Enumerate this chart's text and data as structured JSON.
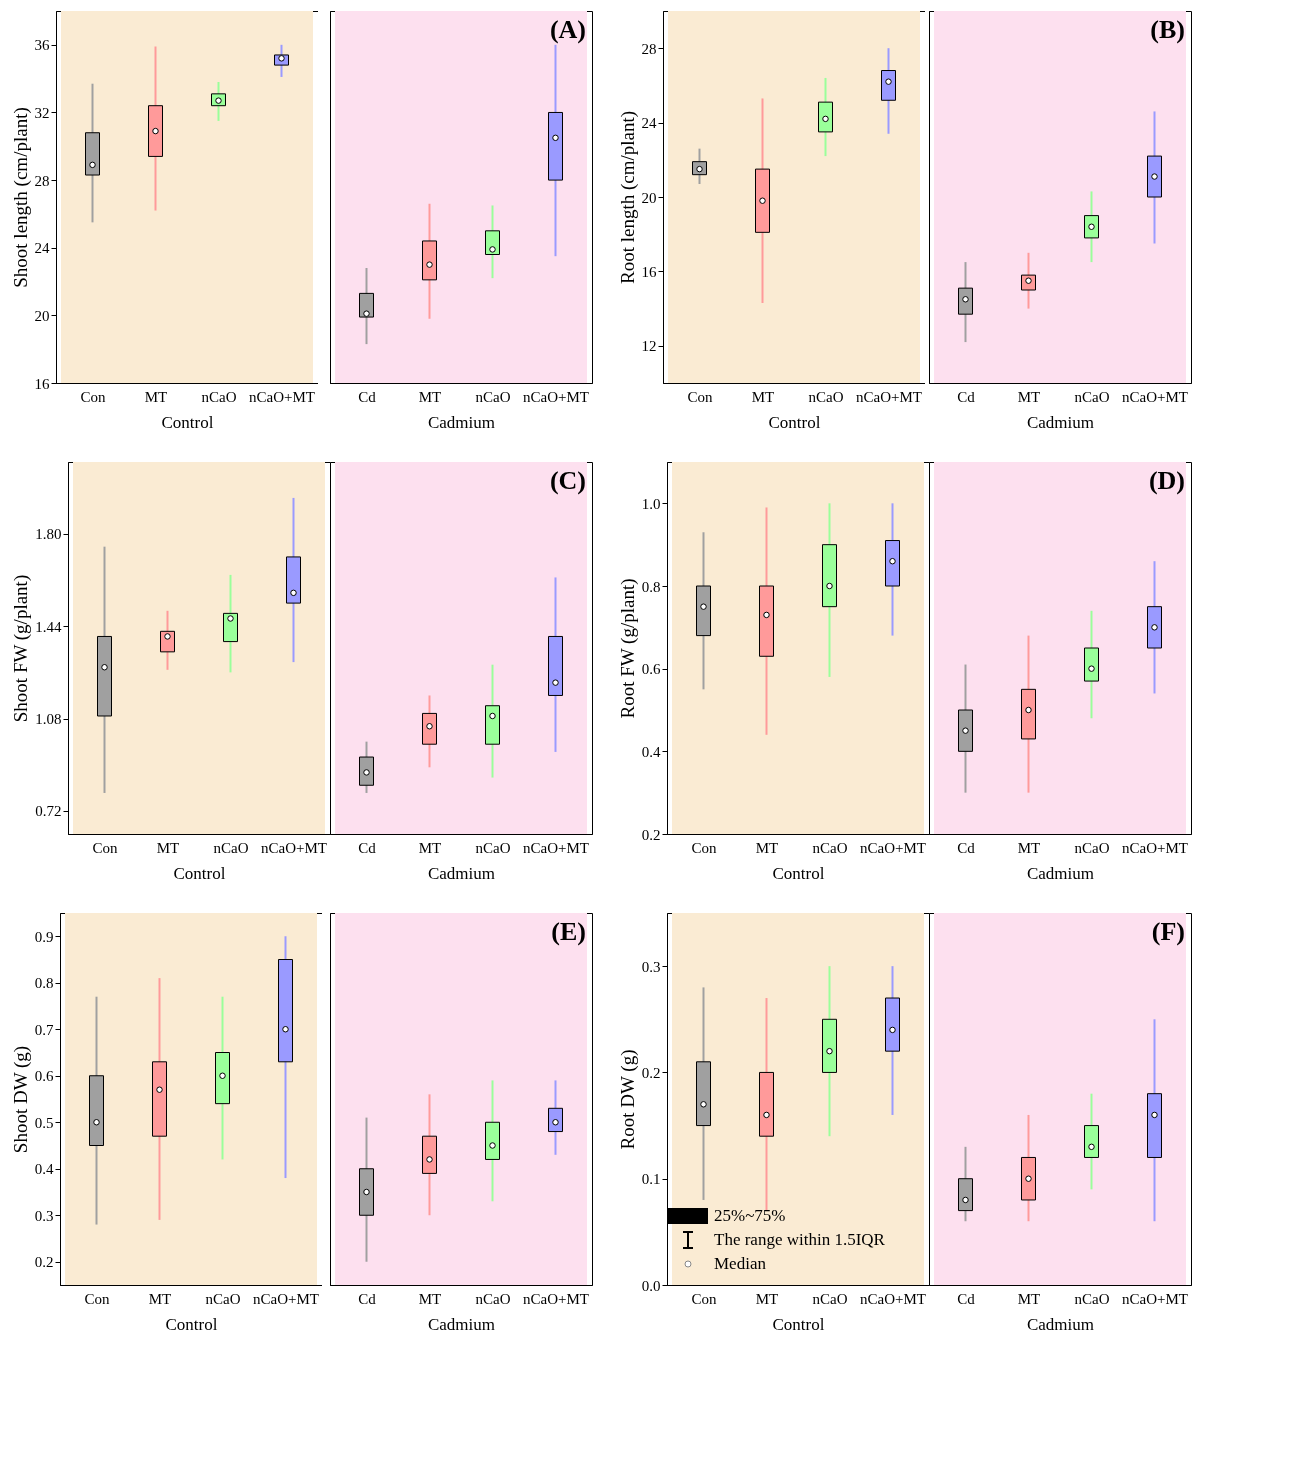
{
  "chart_data": [
    {
      "type": "box",
      "ylabel": "Shoot length (cm/plant)",
      "xlabel": "Control",
      "categories": [
        "Con",
        "MT",
        "nCaO",
        "nCaO+MT"
      ],
      "colors": [
        "#a0a0a0",
        "#ff9a9a",
        "#9aff9a",
        "#9a9aff"
      ],
      "ylim": [
        16,
        38
      ],
      "yticks": [
        16,
        20,
        24,
        28,
        32,
        36
      ],
      "bands": [
        {
          "axis": "x",
          "from": "Con",
          "to": "nCaO+MT",
          "color": "#faebd3"
        }
      ],
      "boxes": [
        {
          "low": 25.5,
          "q1": 28.3,
          "median": 28.9,
          "q3": 30.8,
          "high": 33.7
        },
        {
          "low": 26.2,
          "q1": 29.4,
          "median": 30.9,
          "q3": 32.4,
          "high": 35.9
        },
        {
          "low": 31.5,
          "q1": 32.4,
          "median": 32.7,
          "q3": 33.1,
          "high": 33.8
        },
        {
          "low": 34.1,
          "q1": 34.8,
          "median": 35.2,
          "q3": 35.4,
          "high": 36.0
        }
      ]
    },
    {
      "type": "box",
      "title": "(A)",
      "xlabel": "Cadmium",
      "tick_labels": "x",
      "categories": [
        "Cd",
        "MT",
        "nCaO",
        "nCaO+MT"
      ],
      "colors": [
        "#a0a0a0",
        "#ff9a9a",
        "#9aff9a",
        "#9a9aff"
      ],
      "ylim": [
        16,
        38
      ],
      "yticks": [
        16,
        20,
        24,
        28,
        32,
        36
      ],
      "bands": [
        {
          "axis": "x",
          "from": "Cd",
          "to": "nCaO+MT",
          "color": "#fde0ef"
        }
      ],
      "boxes": [
        {
          "low": 18.3,
          "q1": 19.9,
          "median": 20.1,
          "q3": 21.3,
          "high": 22.8
        },
        {
          "low": 19.8,
          "q1": 22.1,
          "median": 23.0,
          "q3": 24.4,
          "high": 26.6
        },
        {
          "low": 22.2,
          "q1": 23.6,
          "median": 23.9,
          "q3": 25.0,
          "high": 26.5
        },
        {
          "low": 23.5,
          "q1": 28.0,
          "median": 30.5,
          "q3": 32.0,
          "high": 36.0
        }
      ]
    },
    {
      "type": "box",
      "ylabel": "Root length (cm/plant)",
      "xlabel": "Control",
      "categories": [
        "Con",
        "MT",
        "nCaO",
        "nCaO+MT"
      ],
      "colors": [
        "#a0a0a0",
        "#ff9a9a",
        "#9aff9a",
        "#9a9aff"
      ],
      "ylim": [
        10,
        30
      ],
      "yticks": [
        12,
        16,
        20,
        24,
        28
      ],
      "bands": [
        {
          "axis": "x",
          "from": "Con",
          "to": "nCaO+MT",
          "color": "#faebd3"
        }
      ],
      "boxes": [
        {
          "low": 20.7,
          "q1": 21.2,
          "median": 21.5,
          "q3": 21.9,
          "high": 22.6
        },
        {
          "low": 14.3,
          "q1": 18.1,
          "median": 19.8,
          "q3": 21.5,
          "high": 25.3
        },
        {
          "low": 22.2,
          "q1": 23.5,
          "median": 24.2,
          "q3": 25.1,
          "high": 26.4
        },
        {
          "low": 23.4,
          "q1": 25.2,
          "median": 26.2,
          "q3": 26.8,
          "high": 28.0
        }
      ]
    },
    {
      "type": "box",
      "title": "(B)",
      "xlabel": "Cadmium",
      "tick_labels": "x",
      "categories": [
        "Cd",
        "MT",
        "nCaO",
        "nCaO+MT"
      ],
      "colors": [
        "#a0a0a0",
        "#ff9a9a",
        "#9aff9a",
        "#9a9aff"
      ],
      "ylim": [
        10,
        30
      ],
      "yticks": [
        12,
        16,
        20,
        24,
        28
      ],
      "bands": [
        {
          "axis": "x",
          "from": "Cd",
          "to": "nCaO+MT",
          "color": "#fde0ef"
        }
      ],
      "boxes": [
        {
          "low": 12.2,
          "q1": 13.7,
          "median": 14.5,
          "q3": 15.1,
          "high": 16.5
        },
        {
          "low": 14.0,
          "q1": 15.0,
          "median": 15.5,
          "q3": 15.8,
          "high": 17.0
        },
        {
          "low": 16.5,
          "q1": 17.8,
          "median": 18.4,
          "q3": 19.0,
          "high": 20.3
        },
        {
          "low": 17.5,
          "q1": 20.0,
          "median": 21.1,
          "q3": 22.2,
          "high": 24.6
        }
      ]
    },
    {
      "type": "box",
      "ylabel": "Shoot FW (g/plant)",
      "xlabel": "Control",
      "categories": [
        "Con",
        "MT",
        "nCaO",
        "nCaO+MT"
      ],
      "colors": [
        "#a0a0a0",
        "#ff9a9a",
        "#9aff9a",
        "#9a9aff"
      ],
      "ylim": [
        0.63,
        2.08
      ],
      "yticks": [
        0.72,
        1.08,
        1.44,
        {
          "value": 1.8,
          "label": "1.80"
        }
      ],
      "bands": [
        {
          "axis": "x",
          "from": "Con",
          "to": "nCaO+MT",
          "color": "#faebd3"
        }
      ],
      "boxes": [
        {
          "low": 0.79,
          "q1": 1.09,
          "median": 1.28,
          "q3": 1.4,
          "high": 1.75
        },
        {
          "low": 1.27,
          "q1": 1.34,
          "median": 1.4,
          "q3": 1.42,
          "high": 1.5
        },
        {
          "low": 1.26,
          "q1": 1.38,
          "median": 1.47,
          "q3": 1.49,
          "high": 1.64
        },
        {
          "low": 1.3,
          "q1": 1.53,
          "median": 1.57,
          "q3": 1.71,
          "high": 1.94
        }
      ]
    },
    {
      "type": "box",
      "title": "(C)",
      "xlabel": "Cadmium",
      "tick_labels": "x",
      "categories": [
        "Cd",
        "MT",
        "nCaO",
        "nCaO+MT"
      ],
      "colors": [
        "#a0a0a0",
        "#ff9a9a",
        "#9aff9a",
        "#9a9aff"
      ],
      "ylim": [
        0.63,
        2.08
      ],
      "yticks": [
        0.72,
        1.08,
        1.44,
        1.8
      ],
      "bands": [
        {
          "axis": "x",
          "from": "Cd",
          "to": "nCaO+MT",
          "color": "#fde0ef"
        }
      ],
      "boxes": [
        {
          "low": 0.79,
          "q1": 0.82,
          "median": 0.87,
          "q3": 0.93,
          "high": 0.99
        },
        {
          "low": 0.89,
          "q1": 0.98,
          "median": 1.05,
          "q3": 1.1,
          "high": 1.17
        },
        {
          "low": 0.85,
          "q1": 0.98,
          "median": 1.09,
          "q3": 1.13,
          "high": 1.29
        },
        {
          "low": 0.95,
          "q1": 1.17,
          "median": 1.22,
          "q3": 1.4,
          "high": 1.63
        }
      ]
    },
    {
      "type": "box",
      "ylabel": "Root FW (g/plant)",
      "xlabel": "Control",
      "categories": [
        "Con",
        "MT",
        "nCaO",
        "nCaO+MT"
      ],
      "colors": [
        "#a0a0a0",
        "#ff9a9a",
        "#9aff9a",
        "#9a9aff"
      ],
      "ylim": [
        0.2,
        1.1
      ],
      "yticks": [
        0.2,
        0.4,
        0.6,
        0.8,
        {
          "value": 1,
          "label": "1.0"
        }
      ],
      "bands": [
        {
          "axis": "x",
          "from": "Con",
          "to": "nCaO+MT",
          "color": "#faebd3"
        }
      ],
      "boxes": [
        {
          "low": 0.55,
          "q1": 0.68,
          "median": 0.75,
          "q3": 0.8,
          "high": 0.93
        },
        {
          "low": 0.44,
          "q1": 0.63,
          "median": 0.73,
          "q3": 0.8,
          "high": 0.99
        },
        {
          "low": 0.58,
          "q1": 0.75,
          "median": 0.8,
          "q3": 0.9,
          "high": 1.0
        },
        {
          "low": 0.68,
          "q1": 0.8,
          "median": 0.86,
          "q3": 0.91,
          "high": 1.0
        }
      ]
    },
    {
      "type": "box",
      "title": "(D)",
      "xlabel": "Cadmium",
      "tick_labels": "x",
      "categories": [
        "Cd",
        "MT",
        "nCaO",
        "nCaO+MT"
      ],
      "colors": [
        "#a0a0a0",
        "#ff9a9a",
        "#9aff9a",
        "#9a9aff"
      ],
      "ylim": [
        0.2,
        1.1
      ],
      "yticks": [
        0.2,
        0.4,
        0.6,
        0.8,
        1
      ],
      "bands": [
        {
          "axis": "x",
          "from": "Cd",
          "to": "nCaO+MT",
          "color": "#fde0ef"
        }
      ],
      "boxes": [
        {
          "low": 0.3,
          "q1": 0.4,
          "median": 0.45,
          "q3": 0.5,
          "high": 0.61
        },
        {
          "low": 0.3,
          "q1": 0.43,
          "median": 0.5,
          "q3": 0.55,
          "high": 0.68
        },
        {
          "low": 0.48,
          "q1": 0.57,
          "median": 0.6,
          "q3": 0.65,
          "high": 0.74
        },
        {
          "low": 0.54,
          "q1": 0.65,
          "median": 0.7,
          "q3": 0.75,
          "high": 0.86
        }
      ]
    },
    {
      "type": "box",
      "ylabel": "Shoot DW (g)",
      "xlabel": "Control",
      "categories": [
        "Con",
        "MT",
        "nCaO",
        "nCaO+MT"
      ],
      "colors": [
        "#a0a0a0",
        "#ff9a9a",
        "#9aff9a",
        "#9a9aff"
      ],
      "ylim": [
        0.15,
        0.95
      ],
      "yticks": [
        0.2,
        0.3,
        0.4,
        0.5,
        0.6,
        0.7,
        0.8,
        0.9
      ],
      "bands": [
        {
          "axis": "x",
          "from": "Con",
          "to": "nCaO+MT",
          "color": "#faebd3"
        }
      ],
      "boxes": [
        {
          "low": 0.28,
          "q1": 0.45,
          "median": 0.5,
          "q3": 0.6,
          "high": 0.77
        },
        {
          "low": 0.29,
          "q1": 0.47,
          "median": 0.57,
          "q3": 0.63,
          "high": 0.81
        },
        {
          "low": 0.42,
          "q1": 0.54,
          "median": 0.6,
          "q3": 0.65,
          "high": 0.77
        },
        {
          "low": 0.38,
          "q1": 0.63,
          "median": 0.7,
          "q3": 0.85,
          "high": 0.9
        }
      ]
    },
    {
      "type": "box",
      "title": "(E)",
      "xlabel": "Cadmium",
      "tick_labels": "x",
      "categories": [
        "Cd",
        "MT",
        "nCaO",
        "nCaO+MT"
      ],
      "colors": [
        "#a0a0a0",
        "#ff9a9a",
        "#9aff9a",
        "#9a9aff"
      ],
      "ylim": [
        0.15,
        0.95
      ],
      "yticks": [
        0.2,
        0.3,
        0.4,
        0.5,
        0.6,
        0.7,
        0.8,
        0.9
      ],
      "bands": [
        {
          "axis": "x",
          "from": "Cd",
          "to": "nCaO+MT",
          "color": "#fde0ef"
        }
      ],
      "boxes": [
        {
          "low": 0.2,
          "q1": 0.3,
          "median": 0.35,
          "q3": 0.4,
          "high": 0.51
        },
        {
          "low": 0.3,
          "q1": 0.39,
          "median": 0.42,
          "q3": 0.47,
          "high": 0.56
        },
        {
          "low": 0.33,
          "q1": 0.42,
          "median": 0.45,
          "q3": 0.5,
          "high": 0.59
        },
        {
          "low": 0.43,
          "q1": 0.48,
          "median": 0.5,
          "q3": 0.53,
          "high": 0.59
        }
      ]
    },
    {
      "type": "box",
      "ylabel": "Root DW (g)",
      "xlabel": "Control",
      "categories": [
        "Con",
        "MT",
        "nCaO",
        "nCaO+MT"
      ],
      "colors": [
        "#a0a0a0",
        "#ff9a9a",
        "#9aff9a",
        "#9a9aff"
      ],
      "ylim": [
        0,
        0.35
      ],
      "yticks": [
        {
          "value": 0,
          "label": "0.0"
        },
        0.1,
        0.2,
        0.3
      ],
      "bands": [
        {
          "axis": "x",
          "from": "Con",
          "to": "nCaO+MT",
          "color": "#faebd3"
        }
      ],
      "annotations": [
        "25%~75%",
        "The range within 1.5IQR",
        "Median"
      ],
      "boxes": [
        {
          "low": 0.08,
          "q1": 0.15,
          "median": 0.17,
          "q3": 0.21,
          "high": 0.28
        },
        {
          "low": 0.07,
          "q1": 0.14,
          "median": 0.16,
          "q3": 0.2,
          "high": 0.27
        },
        {
          "low": 0.14,
          "q1": 0.2,
          "median": 0.22,
          "q3": 0.25,
          "high": 0.3
        },
        {
          "low": 0.16,
          "q1": 0.22,
          "median": 0.24,
          "q3": 0.27,
          "high": 0.3
        }
      ]
    },
    {
      "type": "box",
      "title": "(F)",
      "xlabel": "Cadmium",
      "tick_labels": "x",
      "categories": [
        "Cd",
        "MT",
        "nCaO",
        "nCaO+MT"
      ],
      "colors": [
        "#a0a0a0",
        "#ff9a9a",
        "#9aff9a",
        "#9a9aff"
      ],
      "ylim": [
        0,
        0.35
      ],
      "yticks": [
        0,
        0.1,
        0.2,
        0.3
      ],
      "bands": [
        {
          "axis": "x",
          "from": "Cd",
          "to": "nCaO+MT",
          "color": "#fde0ef"
        }
      ],
      "boxes": [
        {
          "low": 0.06,
          "q1": 0.07,
          "median": 0.08,
          "q3": 0.1,
          "high": 0.13
        },
        {
          "low": 0.06,
          "q1": 0.08,
          "median": 0.1,
          "q3": 0.12,
          "high": 0.16
        },
        {
          "low": 0.09,
          "q1": 0.12,
          "median": 0.13,
          "q3": 0.15,
          "high": 0.18
        },
        {
          "low": 0.06,
          "q1": 0.12,
          "median": 0.16,
          "q3": 0.18,
          "high": 0.25
        }
      ]
    }
  ]
}
